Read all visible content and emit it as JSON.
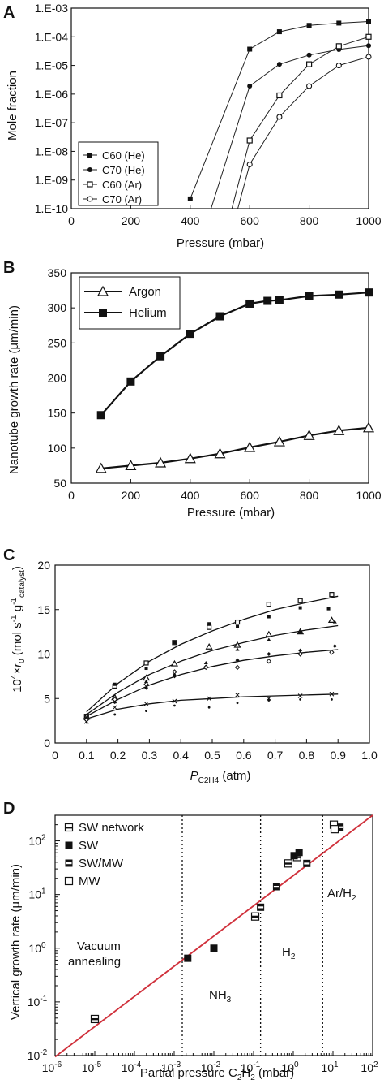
{
  "chart_data": [
    {
      "panel": "A",
      "type": "line",
      "xlabel": "Pressure (mbar)",
      "ylabel": "Mole fraction",
      "xlim": [
        0,
        1000
      ],
      "yscale": "log",
      "ylim": [
        1e-10,
        0.001
      ],
      "xticks": [
        "0",
        "200",
        "400",
        "600",
        "800",
        "1000"
      ],
      "yticks": [
        "1.E-10",
        "1.E-09",
        "1.E-08",
        "1.E-07",
        "1.E-06",
        "1.E-05",
        "1.E-04",
        "1.E-03"
      ],
      "legend": "bottom-left",
      "series": [
        {
          "name": "C60 (He)",
          "marker": "filled-square",
          "x": [
            400,
            600,
            700,
            800,
            900,
            1000
          ],
          "y": [
            2.2e-10,
            3.7e-05,
            0.00015,
            0.00025,
            0.0003,
            0.00034
          ]
        },
        {
          "name": "C70 (He)",
          "marker": "filled-circle",
          "x": [
            470,
            600,
            700,
            800,
            900,
            1000
          ],
          "y": [
            1e-10,
            1.9e-06,
            1.1e-05,
            2.3e-05,
            3.6e-05,
            4.9e-05
          ]
        },
        {
          "name": "C60 (Ar)",
          "marker": "open-square",
          "x": [
            540,
            600,
            700,
            800,
            900,
            1000
          ],
          "y": [
            1e-10,
            2.4e-08,
            9e-07,
            1.1e-05,
            4.7e-05,
            0.0001
          ]
        },
        {
          "name": "C70 (Ar)",
          "marker": "open-circle",
          "x": [
            560,
            600,
            700,
            800,
            900,
            1000
          ],
          "y": [
            1e-10,
            3.5e-09,
            1.6e-07,
            1.9e-06,
            1e-05,
            2e-05
          ]
        }
      ]
    },
    {
      "panel": "B",
      "type": "line",
      "xlabel": "Pressure (mbar)",
      "ylabel": "Nanotube growth rate (µm/min)",
      "xlim": [
        0,
        1000
      ],
      "ylim": [
        50,
        350
      ],
      "xticks": [
        "0",
        "200",
        "400",
        "600",
        "800",
        "1000"
      ],
      "yticks": [
        "50",
        "100",
        "150",
        "200",
        "250",
        "300",
        "350"
      ],
      "legend": "top-left",
      "series": [
        {
          "name": "Argon",
          "marker": "open-triangle",
          "x": [
            100,
            200,
            300,
            400,
            500,
            600,
            700,
            800,
            900,
            1000
          ],
          "y": [
            71,
            75,
            79,
            85,
            92,
            101,
            109,
            118,
            125,
            129
          ]
        },
        {
          "name": "Helium",
          "marker": "filled-square",
          "x": [
            100,
            200,
            300,
            400,
            500,
            600,
            660,
            700,
            800,
            900,
            1000
          ],
          "y": [
            147,
            195,
            231,
            263,
            288,
            306,
            310,
            311,
            317,
            319,
            322
          ]
        }
      ]
    },
    {
      "panel": "C",
      "type": "scatter",
      "xlabel": "P",
      "xlabel_sub": "C2H4",
      "xlabel_unit": " (atm)",
      "ylabel_parts": [
        "10",
        "4",
        "×r",
        "0",
        " (mol s",
        "-1",
        " g",
        "-1",
        "catalyst",
        ")"
      ],
      "xlim": [
        0,
        1.0
      ],
      "ylim": [
        0,
        20
      ],
      "xticks": [
        "0",
        "0.1",
        "0.2",
        "0.3",
        "0.4",
        "0.5",
        "0.6",
        "0.7",
        "0.8",
        "0.9",
        "1.0"
      ],
      "yticks": [
        "0",
        "5",
        "10",
        "15",
        "20"
      ],
      "series": [
        {
          "marker": "open-square",
          "x": [
            0.1,
            0.19,
            0.29,
            0.38,
            0.49,
            0.58,
            0.68,
            0.78,
            0.88
          ],
          "y": [
            3.0,
            6.4,
            9.0,
            11.3,
            13.0,
            13.6,
            15.6,
            16.0,
            16.7
          ]
        },
        {
          "marker": "filled-small-square",
          "x": [
            0.1,
            0.19,
            0.29,
            0.38,
            0.49,
            0.58,
            0.68,
            0.78,
            0.87
          ],
          "y": [
            3.0,
            6.6,
            8.4,
            11.3,
            13.4,
            13.1,
            14.2,
            15.2,
            15.1
          ]
        },
        {
          "marker": "open-triangle",
          "x": [
            0.1,
            0.19,
            0.29,
            0.38,
            0.49,
            0.58,
            0.68,
            0.78,
            0.88
          ],
          "y": [
            2.9,
            5.1,
            7.3,
            8.9,
            10.8,
            11.0,
            12.2,
            12.5,
            13.8
          ]
        },
        {
          "marker": "filled-triangle",
          "x": [
            0.1,
            0.19,
            0.29,
            0.38,
            0.48,
            0.58,
            0.68,
            0.78,
            0.89
          ],
          "y": [
            2.7,
            4.6,
            6.9,
            7.7,
            9.0,
            10.5,
            11.6,
            12.5,
            13.6
          ]
        },
        {
          "marker": "filled-diamond",
          "x": [
            0.1,
            0.19,
            0.29,
            0.38,
            0.48,
            0.58,
            0.68,
            0.78,
            0.89
          ],
          "y": [
            2.8,
            4.6,
            6.2,
            7.5,
            8.6,
            9.3,
            10.0,
            10.4,
            10.9
          ]
        },
        {
          "marker": "open-diamond",
          "x": [
            0.1,
            0.19,
            0.29,
            0.38,
            0.48,
            0.58,
            0.68,
            0.78,
            0.88
          ],
          "y": [
            2.6,
            4.9,
            6.6,
            8.0,
            8.5,
            8.5,
            9.2,
            10.0,
            10.2
          ]
        },
        {
          "marker": "cross",
          "x": [
            0.1,
            0.19,
            0.29,
            0.38,
            0.49,
            0.58,
            0.68,
            0.78,
            0.88
          ],
          "y": [
            2.4,
            4.0,
            4.4,
            4.7,
            5.0,
            5.4,
            5.0,
            5.3,
            5.5
          ]
        },
        {
          "marker": "dot",
          "x": [
            0.1,
            0.19,
            0.29,
            0.38,
            0.49,
            0.58,
            0.68,
            0.78,
            0.88
          ],
          "y": [
            2.3,
            3.2,
            3.6,
            4.2,
            4.0,
            4.5,
            4.8,
            4.9,
            4.9
          ]
        }
      ],
      "fit_curves": [
        {
          "x": [
            0.1,
            0.2,
            0.3,
            0.4,
            0.5,
            0.6,
            0.7,
            0.8,
            0.9
          ],
          "y": [
            3.5,
            6.7,
            9.2,
            11.1,
            12.6,
            13.9,
            15.0,
            15.8,
            16.5
          ]
        },
        {
          "x": [
            0.1,
            0.2,
            0.3,
            0.4,
            0.5,
            0.6,
            0.7,
            0.8,
            0.9
          ],
          "y": [
            3.2,
            5.7,
            7.7,
            9.2,
            10.4,
            11.3,
            12.1,
            12.7,
            13.2
          ]
        },
        {
          "x": [
            0.1,
            0.2,
            0.3,
            0.4,
            0.5,
            0.6,
            0.7,
            0.8,
            0.9
          ],
          "y": [
            3.0,
            4.9,
            6.5,
            7.7,
            8.6,
            9.3,
            9.8,
            10.2,
            10.5
          ]
        },
        {
          "x": [
            0.1,
            0.2,
            0.3,
            0.4,
            0.5,
            0.6,
            0.7,
            0.8,
            0.9
          ],
          "y": [
            2.7,
            3.8,
            4.4,
            4.8,
            5.0,
            5.2,
            5.3,
            5.4,
            5.5
          ]
        }
      ]
    },
    {
      "panel": "D",
      "type": "scatter",
      "xlabel_parts": [
        "Partial pressure C",
        "2",
        "H",
        "2",
        " (mbar)"
      ],
      "ylabel": "Vertical growth rate (µm/min)",
      "xscale": "log",
      "yscale": "log",
      "xlim": [
        1e-06,
        100
      ],
      "ylim": [
        0.01,
        300
      ],
      "xticks": [
        [
          "10",
          "-6"
        ],
        [
          "10",
          "-5"
        ],
        [
          "10",
          "-4"
        ],
        [
          "10",
          "-3"
        ],
        [
          "10",
          "-2"
        ],
        [
          "10",
          "-1"
        ],
        [
          "10",
          "0"
        ],
        [
          "10",
          "1"
        ],
        [
          "10",
          "2"
        ]
      ],
      "yticks": [
        [
          "10",
          "-2"
        ],
        [
          "10",
          "-1"
        ],
        [
          "10",
          "0"
        ],
        [
          "10",
          "1"
        ],
        [
          "10",
          "2"
        ]
      ],
      "legend": "top-left",
      "regions": [
        {
          "lines": [
            "Vacuum",
            "annealing"
          ]
        },
        {
          "lines": [
            "NH",
            "3"
          ]
        },
        {
          "lines": [
            "H",
            "2"
          ]
        },
        {
          "lines": [
            "Ar/H",
            "2"
          ]
        }
      ],
      "boundaries_x": [
        0.0016,
        0.15,
        5.5
      ],
      "fit_line": {
        "color": "#d0303b",
        "x": [
          1e-06,
          100
        ],
        "y": [
          0.0095,
          300
        ]
      },
      "series": [
        {
          "name": "SW network",
          "marker": "square-half",
          "x": [
            1e-05,
            0.11,
            0.75,
            1.25
          ],
          "y": [
            0.048,
            3.9,
            38,
            50
          ]
        },
        {
          "name": "SW",
          "marker": "filled-square",
          "x": [
            0.0022,
            0.01,
            1.05,
            1.4
          ],
          "y": [
            0.65,
            1.0,
            53,
            61
          ]
        },
        {
          "name": "SW/MW",
          "marker": "square-band",
          "x": [
            0.15,
            0.38,
            2.2,
            15
          ],
          "y": [
            5.8,
            14,
            38,
            180
          ]
        },
        {
          "name": "MW",
          "marker": "open-square",
          "x": [
            10.5,
            11
          ],
          "y": [
            200,
            165
          ]
        }
      ]
    }
  ]
}
